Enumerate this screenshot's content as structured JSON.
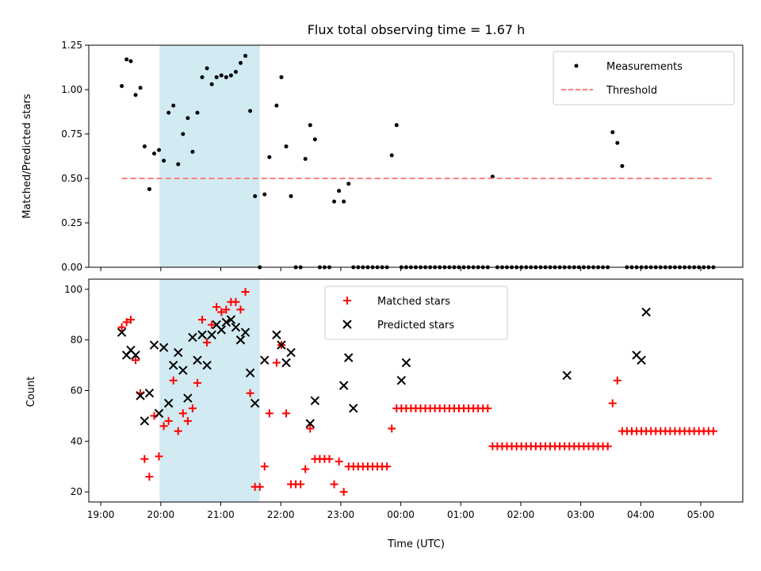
{
  "chart_data": [
    {
      "type": "scatter",
      "title": "Flux total observing time = 1.67 h",
      "ylabel": "Matched/Predicted stars",
      "xlabel": "",
      "xlim": [
        -0.2,
        10.7
      ],
      "ylim": [
        0,
        1.25
      ],
      "yticks": [
        0.0,
        0.25,
        0.5,
        0.75,
        1.0,
        1.25
      ],
      "ytick_labels": [
        "0.00",
        "0.25",
        "0.50",
        "0.75",
        "1.00",
        "1.25"
      ],
      "shaded_region": {
        "x_start": 0.98,
        "x_end": 2.65,
        "color": "#add8e6"
      },
      "series": [
        {
          "name": "Measurements",
          "marker": "dot",
          "color": "#000000",
          "x": [
            0.35,
            0.43,
            0.5,
            0.58,
            0.66,
            0.73,
            0.81,
            0.89,
            0.97,
            1.05,
            1.13,
            1.21,
            1.29,
            1.37,
            1.45,
            1.53,
            1.61,
            1.69,
            1.77,
            1.85,
            1.93,
            2.01,
            2.09,
            2.17,
            2.25,
            2.33,
            2.41,
            2.49,
            2.57,
            2.65,
            2.73,
            2.81,
            2.93,
            3.01,
            3.09,
            3.17,
            3.25,
            3.33,
            3.41,
            3.49,
            3.57,
            3.65,
            3.73,
            3.81,
            3.89,
            3.97,
            4.05,
            4.13,
            4.21,
            4.29,
            4.37,
            4.45,
            4.53,
            4.61,
            4.69,
            4.77,
            4.85,
            4.93,
            5.01,
            5.09,
            5.17,
            5.25,
            5.33,
            5.41,
            5.49,
            5.57,
            5.65,
            5.73,
            5.81,
            5.89,
            5.97,
            6.05,
            6.13,
            6.21,
            6.29,
            6.37,
            6.45,
            6.53,
            6.61,
            6.69,
            6.77,
            6.85,
            6.93,
            7.01,
            7.09,
            7.17,
            7.25,
            7.33,
            7.41,
            7.49,
            7.57,
            7.65,
            7.73,
            7.81,
            7.89,
            7.97,
            8.05,
            8.13,
            8.21,
            8.29,
            8.37,
            8.45,
            8.53,
            8.61,
            8.69,
            8.77,
            8.85,
            8.93,
            9.01,
            9.09,
            9.17,
            9.25,
            9.33,
            9.41,
            9.49,
            9.57,
            9.65,
            9.73,
            9.81,
            9.89,
            9.97,
            10.05,
            10.13,
            10.21
          ],
          "y": [
            1.02,
            1.17,
            1.16,
            0.97,
            1.01,
            0.68,
            0.44,
            0.64,
            0.66,
            0.6,
            0.87,
            0.91,
            0.58,
            0.75,
            0.84,
            0.65,
            0.87,
            1.07,
            1.12,
            1.03,
            1.07,
            1.08,
            1.07,
            1.08,
            1.1,
            1.15,
            1.19,
            0.88,
            0.4,
            0.0,
            0.41,
            0.62,
            0.91,
            1.07,
            0.68,
            0.4,
            0.0,
            0.0,
            0.61,
            0.8,
            0.72,
            0.0,
            0.0,
            0.0,
            0.37,
            0.43,
            0.37,
            0.47,
            0.0,
            0.0,
            0.0,
            0.0,
            0.0,
            0.0,
            0.0,
            0.0,
            0.63,
            0.8,
            0.0,
            0.0,
            0.0,
            0.0,
            0.0,
            0.0,
            0.0,
            0.0,
            0.0,
            0.0,
            0.0,
            0.0,
            0.0,
            0.0,
            0.0,
            0.0,
            0.0,
            0.0,
            0.0,
            0.51,
            0.0,
            0.0,
            0.0,
            0.0,
            0.0,
            0.0,
            0.0,
            0.0,
            0.0,
            0.0,
            0.0,
            0.0,
            0.0,
            0.0,
            0.0,
            0.0,
            0.0,
            0.0,
            0.0,
            0.0,
            0.0,
            0.0,
            0.0,
            0.0,
            0.76,
            0.7,
            0.57,
            0.0,
            0.0,
            0.0,
            0.0,
            0.0,
            0.0,
            0.0,
            0.0,
            0.0,
            0.0,
            0.0,
            0.0,
            0.0,
            0.0,
            0.0,
            0.0,
            0.0,
            0.0,
            0.0
          ]
        },
        {
          "name": "Threshold",
          "marker": "dashed-line",
          "color": "#ff7f7f",
          "x": [
            0.35,
            10.21
          ],
          "y": [
            0.5,
            0.5
          ]
        }
      ],
      "legend": {
        "position": "top-right",
        "entries": [
          "Measurements",
          "Threshold"
        ]
      }
    },
    {
      "type": "scatter",
      "title": "",
      "xlabel": "Time (UTC)",
      "ylabel": "Count",
      "xlim": [
        -0.2,
        10.7
      ],
      "ylim": [
        16,
        104
      ],
      "yticks": [
        20,
        40,
        60,
        80,
        100
      ],
      "ytick_labels": [
        "20",
        "40",
        "60",
        "80",
        "100"
      ],
      "xticks": [
        0,
        1,
        2,
        3,
        4,
        5,
        6,
        7,
        8,
        9,
        10
      ],
      "xtick_labels": [
        "19:00",
        "20:00",
        "21:00",
        "22:00",
        "23:00",
        "00:00",
        "01:00",
        "02:00",
        "03:00",
        "04:00",
        "05:00"
      ],
      "shaded_region": {
        "x_start": 0.98,
        "x_end": 2.65,
        "color": "#add8e6"
      },
      "series": [
        {
          "name": "Matched stars",
          "marker": "plus",
          "color": "#ff0000",
          "x": [
            0.35,
            0.43,
            0.5,
            0.58,
            0.66,
            0.73,
            0.81,
            0.89,
            0.97,
            1.05,
            1.13,
            1.21,
            1.29,
            1.37,
            1.45,
            1.53,
            1.61,
            1.69,
            1.77,
            1.85,
            1.93,
            2.01,
            2.09,
            2.17,
            2.25,
            2.33,
            2.41,
            2.49,
            2.57,
            2.65,
            2.73,
            2.81,
            2.93,
            3.01,
            3.09,
            3.17,
            3.25,
            3.33,
            3.41,
            3.49,
            3.57,
            3.65,
            3.73,
            3.81,
            3.89,
            3.97,
            4.05,
            4.13,
            4.21,
            4.29,
            4.37,
            4.45,
            4.53,
            4.61,
            4.69,
            4.77,
            4.85,
            4.93,
            5.01,
            5.09,
            5.17,
            5.25,
            5.33,
            5.41,
            5.49,
            5.57,
            5.65,
            5.73,
            5.81,
            5.89,
            5.97,
            6.05,
            6.13,
            6.21,
            6.29,
            6.37,
            6.45,
            6.53,
            6.61,
            6.69,
            6.77,
            6.85,
            6.93,
            7.01,
            7.09,
            7.17,
            7.25,
            7.33,
            7.41,
            7.49,
            7.57,
            7.65,
            7.73,
            7.81,
            7.89,
            7.97,
            8.05,
            8.13,
            8.21,
            8.29,
            8.37,
            8.45,
            8.53,
            8.61,
            8.69,
            8.77,
            8.85,
            8.93,
            9.01,
            9.09,
            9.17,
            9.25,
            9.33,
            9.41,
            9.49,
            9.57,
            9.65,
            9.73,
            9.81,
            9.89,
            9.97,
            10.05,
            10.13,
            10.21
          ],
          "y": [
            85,
            87,
            88,
            72,
            59,
            33,
            26,
            50,
            34,
            46,
            48,
            64,
            44,
            51,
            48,
            53,
            63,
            88,
            79,
            86,
            93,
            91,
            92,
            95,
            95,
            92,
            99,
            59,
            22,
            22,
            30,
            51,
            71,
            78,
            51,
            23,
            23,
            23,
            29,
            45,
            33,
            33,
            33,
            33,
            23,
            32,
            20,
            30,
            30,
            30,
            30,
            30,
            30,
            30,
            30,
            30,
            45,
            53,
            53,
            53,
            53,
            53,
            53,
            53,
            53,
            53,
            53,
            53,
            53,
            53,
            53,
            53,
            53,
            53,
            53,
            53,
            53,
            38,
            38,
            38,
            38,
            38,
            38,
            38,
            38,
            38,
            38,
            38,
            38,
            38,
            38,
            38,
            38,
            38,
            38,
            38,
            38,
            38,
            38,
            38,
            38,
            38,
            55,
            64,
            44,
            44,
            44,
            44,
            44,
            44,
            44,
            44,
            44,
            44,
            44,
            44,
            44,
            44,
            44,
            44,
            44,
            44,
            44,
            44
          ]
        },
        {
          "name": "Predicted stars",
          "marker": "x",
          "color": "#000000",
          "x": [
            0.35,
            0.43,
            0.5,
            0.58,
            0.66,
            0.73,
            0.81,
            0.89,
            0.97,
            1.05,
            1.13,
            1.21,
            1.29,
            1.37,
            1.45,
            1.53,
            1.61,
            1.69,
            1.77,
            1.85,
            1.93,
            2.01,
            2.09,
            2.17,
            2.25,
            2.33,
            2.41,
            2.49,
            2.57,
            2.73,
            2.93,
            3.01,
            3.09,
            3.17,
            3.49,
            3.57,
            4.05,
            4.13,
            4.21,
            5.01,
            5.09,
            7.77,
            8.93,
            9.01,
            9.09
          ],
          "y": [
            83,
            74,
            76,
            74,
            58,
            48,
            59,
            78,
            51,
            77,
            55,
            70,
            75,
            68,
            57,
            81,
            72,
            82,
            70,
            82,
            86,
            84,
            87,
            88,
            85,
            80,
            83,
            67,
            55,
            72,
            82,
            78,
            71,
            75,
            47,
            56,
            62,
            73,
            53,
            64,
            71,
            66,
            74,
            72,
            91
          ]
        }
      ],
      "legend": {
        "position": "top-center",
        "entries": [
          "Matched stars",
          "Predicted stars"
        ]
      }
    }
  ]
}
